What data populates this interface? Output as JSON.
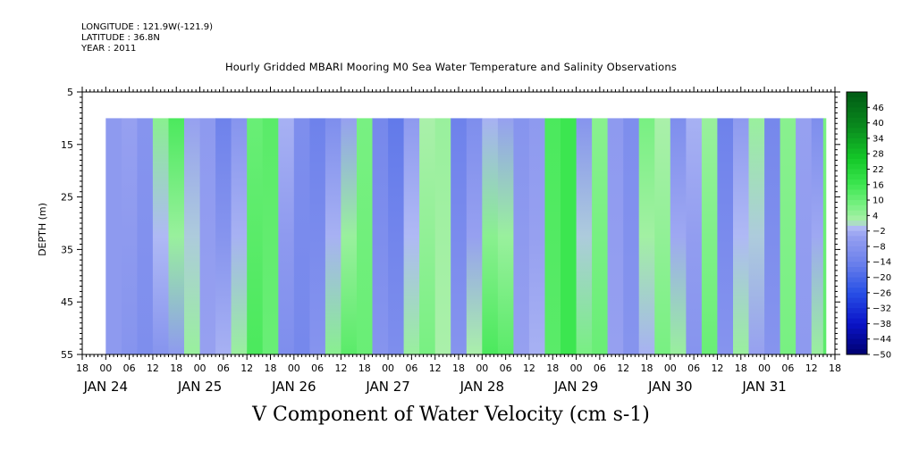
{
  "header": {
    "longitude": "LONGITUDE : 121.9W(-121.9)",
    "latitude": "LATITUDE : 36.8N",
    "year": "YEAR : 2011"
  },
  "chart_data": {
    "type": "heatmap",
    "title": "Hourly Gridded MBARI Mooring M0 Sea Water Temperature and Salinity Observations",
    "xlabel": "V Component of Water Velocity (cm s-1)",
    "ylabel": "DEPTH (m)",
    "ylim": [
      55,
      5
    ],
    "y_ticks": [
      5,
      15,
      25,
      35,
      45,
      55
    ],
    "data_depth_range": [
      10,
      55
    ],
    "x_range_hours": [
      "2011-01-23T18:00",
      "2011-01-31T18:00"
    ],
    "data_time_range": [
      "2011-01-24T00:00",
      "2011-01-31T15:00"
    ],
    "x_tick_hour_labels": [
      "18",
      "00",
      "06",
      "12",
      "18",
      "00",
      "06",
      "12",
      "18",
      "00",
      "06",
      "12",
      "18",
      "00",
      "06",
      "12",
      "18",
      "00",
      "06",
      "12",
      "18",
      "00",
      "06",
      "12",
      "18",
      "00",
      "06",
      "12",
      "18",
      "00",
      "06",
      "12",
      "18"
    ],
    "x_day_labels": [
      "JAN 24",
      "JAN 25",
      "JAN 26",
      "JAN 27",
      "JAN 28",
      "JAN 29",
      "JAN 30",
      "JAN 31"
    ],
    "colorbar_labels": [
      "46",
      "40",
      "34",
      "28",
      "22",
      "16",
      "10",
      "4",
      "-2",
      "-8",
      "-14",
      "-20",
      "-26",
      "-32",
      "-38",
      "-44",
      "-50"
    ],
    "colorbar_range": [
      -50,
      52
    ],
    "column_profile": [
      {
        "time": "2011-01-24T00:00",
        "top": -6,
        "bottom": -6
      },
      {
        "time": "2011-01-24T04:00",
        "top": -4,
        "bottom": -8
      },
      {
        "time": "2011-01-24T08:00",
        "top": -8,
        "bottom": -10
      },
      {
        "time": "2011-01-24T12:00",
        "top": 6,
        "bottom": -8
      },
      {
        "time": "2011-01-24T16:00",
        "top": 14,
        "bottom": -6
      },
      {
        "time": "2011-01-24T20:00",
        "top": -4,
        "bottom": 4
      },
      {
        "time": "2011-01-25T00:00",
        "top": -6,
        "bottom": -4
      },
      {
        "time": "2011-01-25T04:00",
        "top": -14,
        "bottom": -2
      },
      {
        "time": "2011-01-25T08:00",
        "top": -8,
        "bottom": 4
      },
      {
        "time": "2011-01-25T12:00",
        "top": 10,
        "bottom": 14
      },
      {
        "time": "2011-01-25T16:00",
        "top": 12,
        "bottom": 10
      },
      {
        "time": "2011-01-25T20:00",
        "top": -2,
        "bottom": -10
      },
      {
        "time": "2011-01-26T00:00",
        "top": -10,
        "bottom": -12
      },
      {
        "time": "2011-01-26T04:00",
        "top": -14,
        "bottom": -8
      },
      {
        "time": "2011-01-26T08:00",
        "top": -10,
        "bottom": 6
      },
      {
        "time": "2011-01-26T12:00",
        "top": -4,
        "bottom": 12
      },
      {
        "time": "2011-01-26T16:00",
        "top": 8,
        "bottom": 10
      },
      {
        "time": "2011-01-26T20:00",
        "top": -12,
        "bottom": -8
      },
      {
        "time": "2011-01-27T00:00",
        "top": -16,
        "bottom": -10
      },
      {
        "time": "2011-01-27T04:00",
        "top": -6,
        "bottom": 4
      },
      {
        "time": "2011-01-27T08:00",
        "top": 2,
        "bottom": 8
      },
      {
        "time": "2011-01-27T12:00",
        "top": 4,
        "bottom": 2
      },
      {
        "time": "2011-01-27T16:00",
        "top": -14,
        "bottom": -8
      },
      {
        "time": "2011-01-27T20:00",
        "top": -10,
        "bottom": 2
      },
      {
        "time": "2011-01-28T00:00",
        "top": -2,
        "bottom": 14
      },
      {
        "time": "2011-01-28T04:00",
        "top": -4,
        "bottom": 12
      },
      {
        "time": "2011-01-28T08:00",
        "top": -8,
        "bottom": -4
      },
      {
        "time": "2011-01-28T12:00",
        "top": -6,
        "bottom": -2
      },
      {
        "time": "2011-01-28T16:00",
        "top": 14,
        "bottom": 12
      },
      {
        "time": "2011-01-28T20:00",
        "top": 16,
        "bottom": 16
      },
      {
        "time": "2011-01-29T00:00",
        "top": -8,
        "bottom": 8
      },
      {
        "time": "2011-01-29T04:00",
        "top": 6,
        "bottom": 10
      },
      {
        "time": "2011-01-29T08:00",
        "top": -6,
        "bottom": -4
      },
      {
        "time": "2011-01-29T12:00",
        "top": -10,
        "bottom": -8
      },
      {
        "time": "2011-01-29T16:00",
        "top": 8,
        "bottom": -2
      },
      {
        "time": "2011-01-29T20:00",
        "top": 2,
        "bottom": 8
      },
      {
        "time": "2011-01-30T00:00",
        "top": -10,
        "bottom": 4
      },
      {
        "time": "2011-01-30T04:00",
        "top": -2,
        "bottom": -8
      },
      {
        "time": "2011-01-30T08:00",
        "top": 4,
        "bottom": 10
      },
      {
        "time": "2011-01-30T12:00",
        "top": -14,
        "bottom": -8
      },
      {
        "time": "2011-01-30T16:00",
        "top": -6,
        "bottom": 4
      },
      {
        "time": "2011-01-30T20:00",
        "top": 4,
        "bottom": -4
      },
      {
        "time": "2011-01-31T00:00",
        "top": -12,
        "bottom": -8
      },
      {
        "time": "2011-01-31T04:00",
        "top": 6,
        "bottom": 8
      },
      {
        "time": "2011-01-31T08:00",
        "top": -4,
        "bottom": -6
      },
      {
        "time": "2011-01-31T12:00",
        "top": -10,
        "bottom": 4
      },
      {
        "time": "2011-01-31T15:00",
        "top": 8,
        "bottom": 12
      }
    ]
  }
}
